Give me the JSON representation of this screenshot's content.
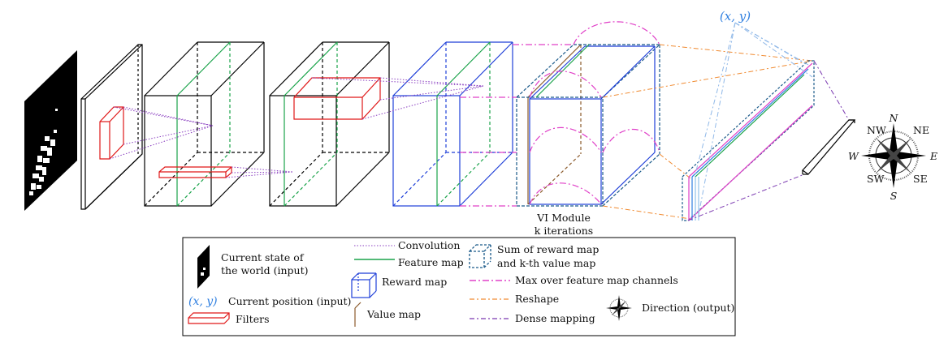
{
  "diagram": {
    "position_label": "(x, y)",
    "vi_module_title": "VI Module",
    "vi_module_subtitle": "k iterations",
    "compass": {
      "north": "N",
      "south": "S",
      "east": "E",
      "west": "W",
      "nw": "NW",
      "ne": "NE",
      "sw": "SW",
      "se": "SE"
    }
  },
  "legend": {
    "state_input": [
      "Current state of",
      "the world (input)"
    ],
    "position_symbol": "(x, y)",
    "position_input": "Current position (input)",
    "filters": "Filters",
    "convolution": "Convolution",
    "feature_map": "Feature map",
    "reward_map": "Reward map",
    "value_map": "Value map",
    "sum_map": [
      "Sum of reward map",
      "and k-th value map"
    ],
    "max_channels": "Max over feature map channels",
    "reshape": "Reshape",
    "dense_mapping": "Dense mapping",
    "direction_output": "Direction (output)"
  },
  "colors": {
    "convolution": "#8a3fc0",
    "feature_map": "#1aa34a",
    "reward_map": "#1f3fd8",
    "value_map": "#8b5a2b",
    "sum_map": "#1b5a8a",
    "max_channels": "#e040c8",
    "reshape": "#f08a30",
    "dense_mapping": "#7a38b0",
    "filters": "#e01818",
    "position": "#2f7fe0"
  }
}
